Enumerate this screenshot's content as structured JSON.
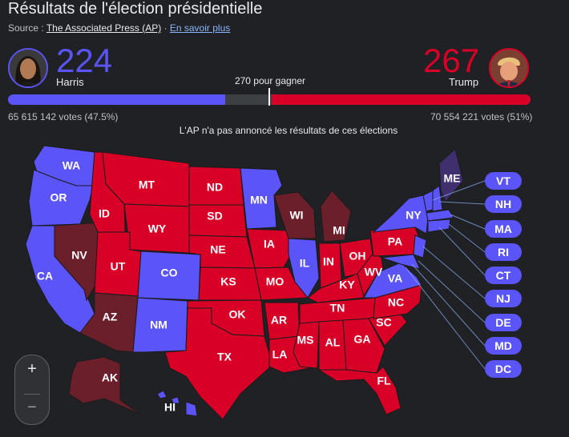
{
  "header": {
    "title": "Résultats de l'élection présidentielle",
    "source_prefix": "Source : ",
    "source_name": "The Associated Press (AP)",
    "separator": " · ",
    "learn_more": "En savoir plus"
  },
  "harris": {
    "name": "Harris",
    "electoral_votes": "224",
    "popular_votes": "65 615 142 votes (47.5%)",
    "color": "#5a54f9",
    "bar_fraction": 0.416
  },
  "trump": {
    "name": "Trump",
    "electoral_votes": "267",
    "popular_votes": "70 554 221 votes (51%)",
    "color": "#d80027",
    "bar_fraction": 0.496
  },
  "to_win": "270 pour gagner",
  "note": "L'AP n'a pas annoncé les résultats de ces élections",
  "colors": {
    "dem": "#5a54f9",
    "rep": "#d80027",
    "rep_lean": "#6b1f2a",
    "dem_lean": "#3f2f6f",
    "background": "#202124"
  },
  "states": {
    "WA": "WA",
    "OR": "OR",
    "CA": "CA",
    "NV": "NV",
    "ID": "ID",
    "MT": "MT",
    "WY": "WY",
    "UT": "UT",
    "AZ": "AZ",
    "CO": "CO",
    "NM": "NM",
    "ND": "ND",
    "SD": "SD",
    "NE": "NE",
    "KS": "KS",
    "OK": "OK",
    "TX": "TX",
    "MN": "MN",
    "IA": "IA",
    "MO": "MO",
    "AR": "AR",
    "LA": "LA",
    "WI": "WI",
    "IL": "IL",
    "MI": "MI",
    "IN": "IN",
    "OH": "OH",
    "KY": "KY",
    "TN": "TN",
    "MS": "MS",
    "AL": "AL",
    "GA": "GA",
    "FL": "FL",
    "SC": "SC",
    "NC": "NC",
    "VA": "VA",
    "WV": "WV",
    "PA": "PA",
    "NY": "NY",
    "ME": "ME",
    "AK": "AK",
    "HI": "HI"
  },
  "small_states": [
    "VT",
    "NH",
    "MA",
    "RI",
    "CT",
    "NJ",
    "DE",
    "MD",
    "DC"
  ],
  "zoom": {
    "in": "+",
    "out": "−"
  }
}
